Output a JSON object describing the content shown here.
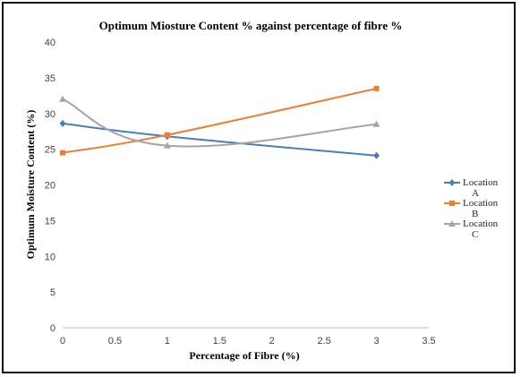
{
  "chart_data": {
    "type": "line",
    "title": "Optimum Miosture Content %  against percentage of fibre  %",
    "xlabel": "Percentage of Fibre (%)",
    "ylabel": "Optimum Moisture Content (%)",
    "xlim": [
      0,
      3.5
    ],
    "ylim": [
      0,
      40
    ],
    "xticks": [
      0,
      0.5,
      1,
      1.5,
      2,
      2.5,
      3,
      3.5
    ],
    "yticks": [
      0,
      5,
      10,
      15,
      20,
      25,
      30,
      35,
      40
    ],
    "x_tick_labels": [
      "0",
      "0.5",
      "1",
      "1.5",
      "2",
      "2.5",
      "3",
      "3.5"
    ],
    "y_tick_labels": [
      "0",
      "5",
      "10",
      "15",
      "20",
      "25",
      "30",
      "35",
      "40"
    ],
    "grid": false,
    "legend_position": "right",
    "x": [
      0,
      1,
      3
    ],
    "series": [
      {
        "name": "Location A",
        "name_lines": [
          "Location",
          "A"
        ],
        "values": [
          28.6,
          26.8,
          24.1
        ],
        "color": "#4a7ebb",
        "marker": "diamond",
        "smooth": true
      },
      {
        "name": "Location B",
        "name_lines": [
          "Location",
          "B"
        ],
        "values": [
          24.5,
          27.0,
          33.5
        ],
        "color": "#ed7d31",
        "marker": "square",
        "smooth": true
      },
      {
        "name": "Location C",
        "name_lines": [
          "Location",
          "C"
        ],
        "values": [
          32.0,
          25.5,
          28.5
        ],
        "color": "#a5a5a5",
        "marker": "triangle",
        "smooth": true
      }
    ]
  }
}
